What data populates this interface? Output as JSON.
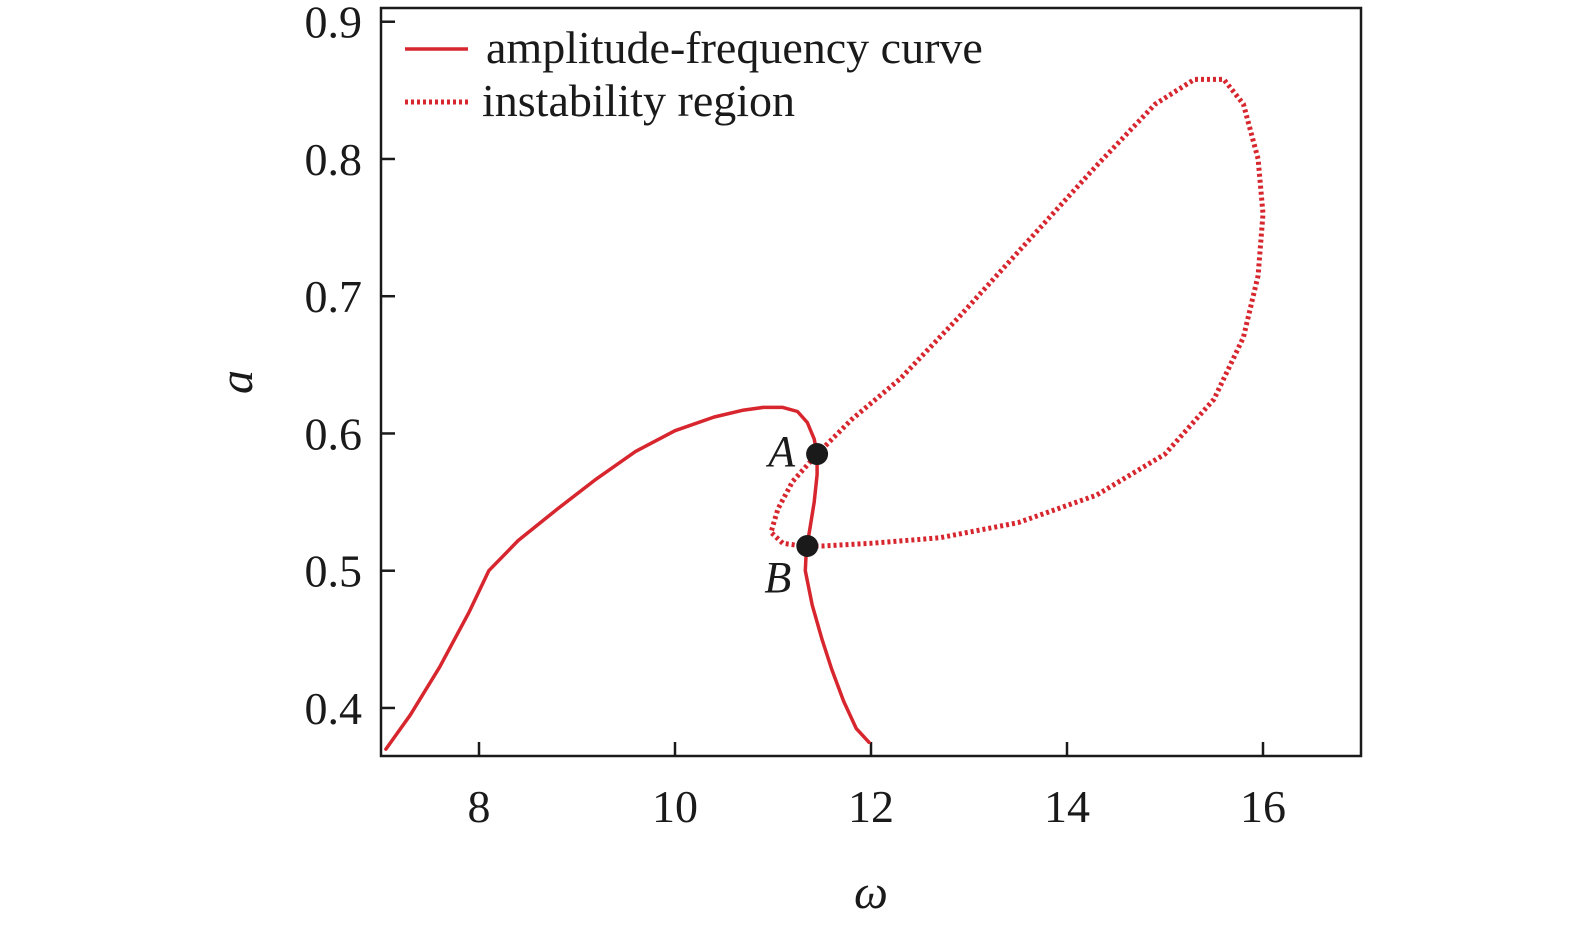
{
  "chart_data": {
    "type": "line",
    "title": "",
    "xlabel": "ω",
    "ylabel": "a",
    "xlim": [
      7,
      17
    ],
    "ylim": [
      0.365,
      0.91
    ],
    "xticks": [
      8,
      10,
      12,
      14,
      16
    ],
    "xtick_labels": [
      "8",
      "10",
      "12",
      "14",
      "16"
    ],
    "yticks": [
      0.4,
      0.5,
      0.6,
      0.7,
      0.8,
      0.9
    ],
    "ytick_labels": [
      "0.4",
      "0.5",
      "0.6",
      "0.7",
      "0.8",
      "0.9"
    ],
    "grid": false,
    "legend_position": "top-left",
    "series": [
      {
        "name": "amplitude-frequency curve",
        "style": "solid",
        "color": "#d7262e",
        "x": [
          7.05,
          7.3,
          7.6,
          7.9,
          8.1,
          8.4,
          8.8,
          9.2,
          9.6,
          10.0,
          10.4,
          10.7,
          10.9,
          11.1,
          11.25,
          11.35,
          11.42,
          11.45,
          11.45,
          11.42,
          11.38,
          11.34,
          11.33,
          11.4,
          11.5,
          11.6,
          11.72,
          11.85,
          11.98
        ],
        "y": [
          0.37,
          0.395,
          0.43,
          0.47,
          0.5,
          0.522,
          0.545,
          0.567,
          0.587,
          0.602,
          0.612,
          0.617,
          0.619,
          0.619,
          0.616,
          0.608,
          0.596,
          0.585,
          0.57,
          0.55,
          0.532,
          0.515,
          0.5,
          0.475,
          0.45,
          0.428,
          0.405,
          0.385,
          0.375
        ]
      },
      {
        "name": "instability region",
        "style": "dotted",
        "color": "#d7262e",
        "x": [
          11.45,
          11.8,
          12.3,
          12.9,
          13.6,
          14.3,
          14.9,
          15.3,
          15.6,
          15.8,
          15.95,
          16.0,
          15.95,
          15.8,
          15.5,
          15.0,
          14.3,
          13.5,
          12.7,
          12.0,
          11.5,
          11.3,
          11.1,
          10.98,
          11.05,
          11.2,
          11.45
        ],
        "y": [
          0.585,
          0.61,
          0.64,
          0.685,
          0.74,
          0.795,
          0.84,
          0.858,
          0.858,
          0.84,
          0.8,
          0.76,
          0.715,
          0.67,
          0.625,
          0.585,
          0.555,
          0.535,
          0.524,
          0.52,
          0.518,
          0.518,
          0.52,
          0.528,
          0.545,
          0.565,
          0.585
        ]
      }
    ],
    "points": [
      {
        "label": "A",
        "x": 11.45,
        "y": 0.585,
        "label_side": "left"
      },
      {
        "label": "B",
        "x": 11.35,
        "y": 0.518,
        "label_side": "below-left"
      }
    ]
  }
}
